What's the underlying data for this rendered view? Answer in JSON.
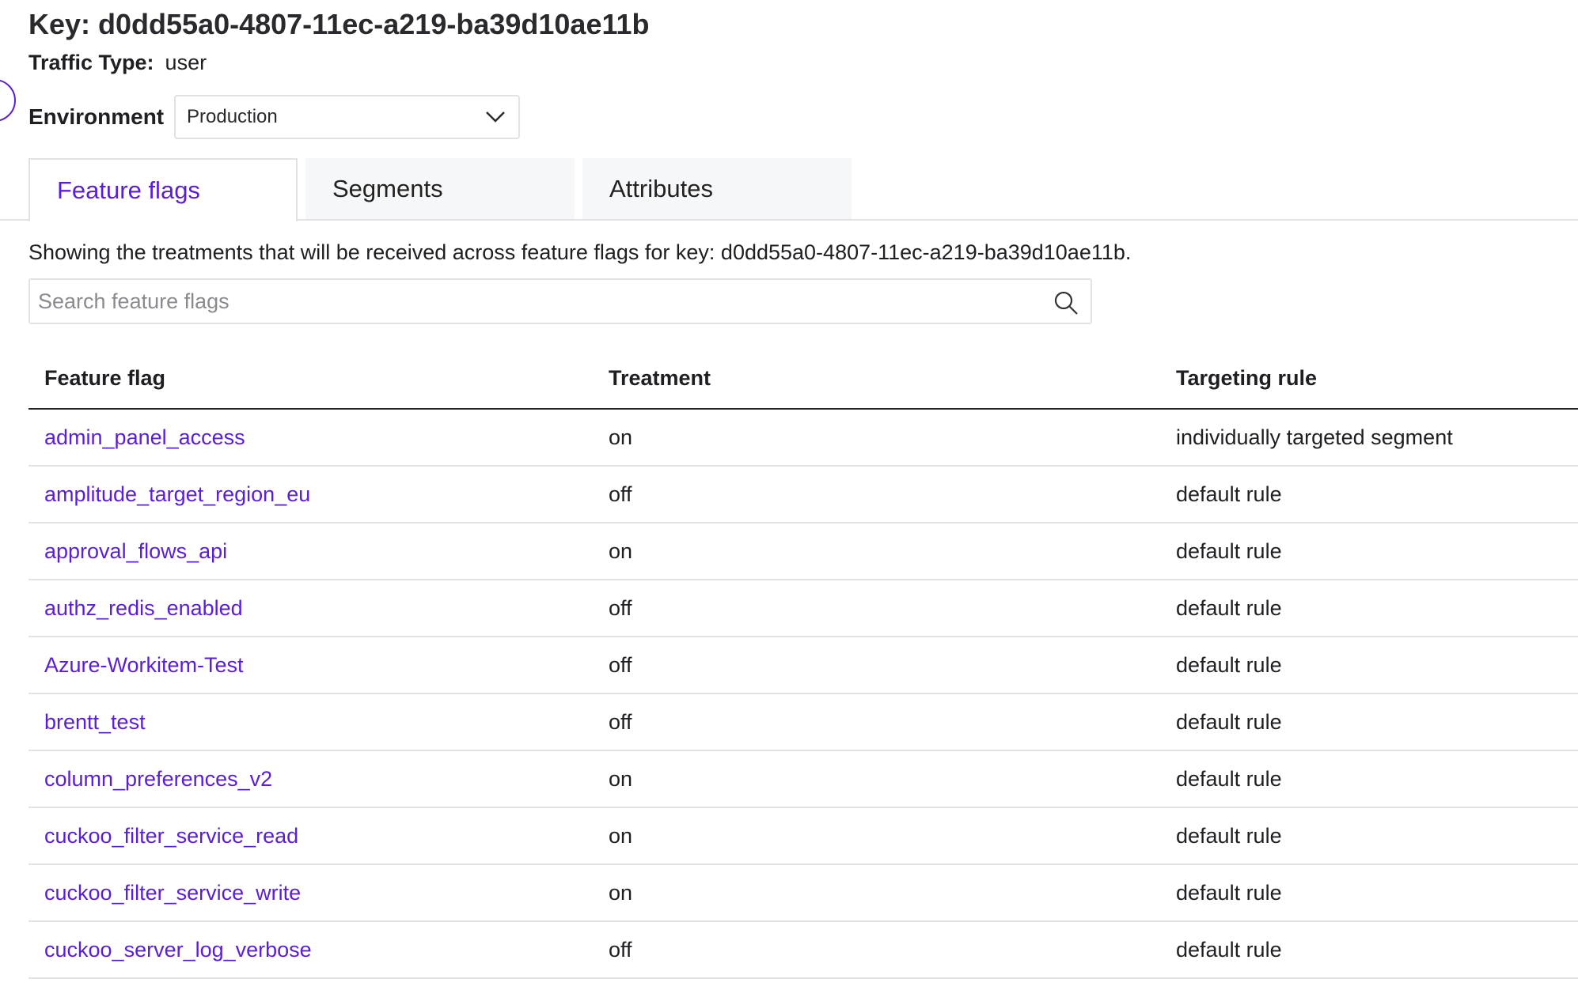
{
  "header": {
    "title": "Key: d0dd55a0-4807-11ec-a219-ba39d10ae11b",
    "traffic_type_label": "Traffic Type:",
    "traffic_type_value": "user",
    "environment_label": "Environment",
    "environment_value": "Production"
  },
  "tabs": [
    {
      "label": "Feature flags",
      "active": true
    },
    {
      "label": "Segments",
      "active": false
    },
    {
      "label": "Attributes",
      "active": false
    }
  ],
  "description": "Showing the treatments that will be received across feature flags for key: d0dd55a0-4807-11ec-a219-ba39d10ae11b.",
  "search": {
    "placeholder": "Search feature flags",
    "value": ""
  },
  "table": {
    "columns": [
      "Feature flag",
      "Treatment",
      "Targeting rule"
    ],
    "rows": [
      {
        "flag": "admin_panel_access",
        "treatment": "on",
        "rule": "individually targeted segment"
      },
      {
        "flag": "amplitude_target_region_eu",
        "treatment": "off",
        "rule": "default rule"
      },
      {
        "flag": "approval_flows_api",
        "treatment": "on",
        "rule": "default rule"
      },
      {
        "flag": "authz_redis_enabled",
        "treatment": "off",
        "rule": "default rule"
      },
      {
        "flag": "Azure-Workitem-Test",
        "treatment": "off",
        "rule": "default rule"
      },
      {
        "flag": "brentt_test",
        "treatment": "off",
        "rule": "default rule"
      },
      {
        "flag": "column_preferences_v2",
        "treatment": "on",
        "rule": "default rule"
      },
      {
        "flag": "cuckoo_filter_service_read",
        "treatment": "on",
        "rule": "default rule"
      },
      {
        "flag": "cuckoo_filter_service_write",
        "treatment": "on",
        "rule": "default rule"
      },
      {
        "flag": "cuckoo_server_log_verbose",
        "treatment": "off",
        "rule": "default rule"
      }
    ]
  },
  "colors": {
    "accent": "#5a1ed6",
    "text": "#1f1f23",
    "border": "#e2e2e6"
  },
  "icons": {
    "select": "chevron-down-icon",
    "search": "search-icon"
  }
}
